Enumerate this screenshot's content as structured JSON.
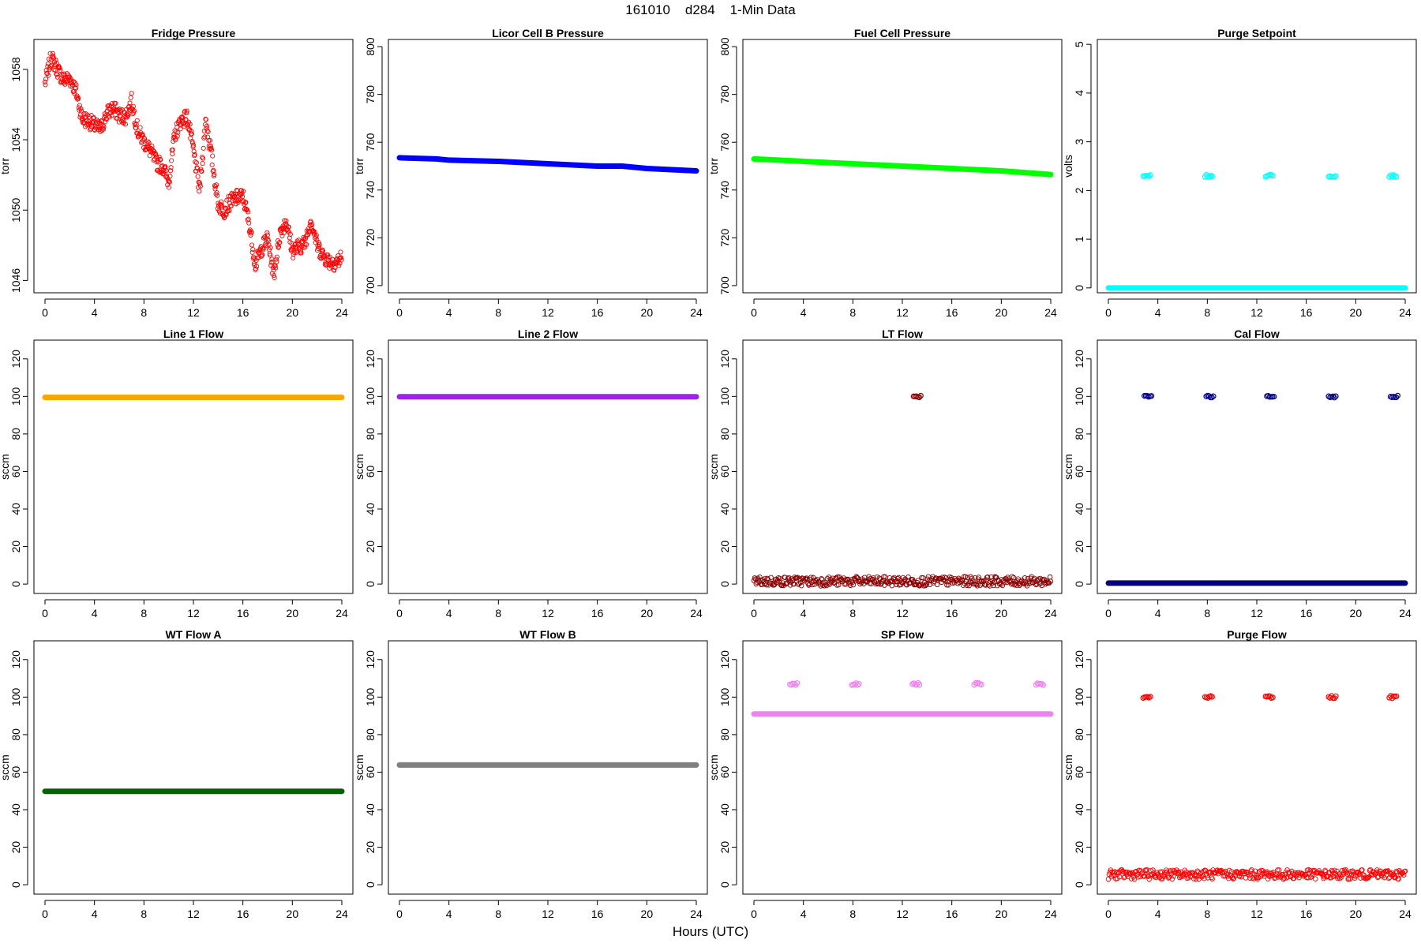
{
  "figure": {
    "title": "161010    d284    1-Min Data",
    "xlabel": "Hours (UTC)"
  },
  "chart_data": [
    {
      "type": "scatter",
      "title": "Fridge Pressure",
      "ylabel": "torr",
      "xlim": [
        0,
        24
      ],
      "ylim": [
        1045.3,
        1059.7
      ],
      "xticks": [
        0,
        4,
        8,
        12,
        16,
        20,
        24
      ],
      "yticks": [
        1046,
        1050,
        1054,
        1058
      ],
      "grid": false,
      "legend": "none",
      "series": [
        {
          "color": "#ff0000",
          "marker": "open-circle",
          "x": [
            0,
            0.5,
            1,
            1.5,
            2,
            2.5,
            3,
            3.5,
            4,
            4.5,
            5,
            5.5,
            6,
            6.5,
            7,
            7.5,
            8,
            8.5,
            9,
            9.5,
            10,
            10.5,
            11,
            11.5,
            12,
            12.5,
            13,
            13.5,
            14,
            14.5,
            15,
            15.5,
            16,
            16.5,
            17,
            17.5,
            18,
            18.5,
            19,
            19.5,
            20,
            20.5,
            21,
            21.5,
            22,
            22.5,
            23,
            23.5,
            24
          ],
          "y": [
            1057.2,
            1058.7,
            1058.0,
            1057.4,
            1057.5,
            1056.8,
            1055.2,
            1055.1,
            1054.8,
            1054.6,
            1055.5,
            1055.8,
            1055.4,
            1055.3,
            1056.2,
            1054.5,
            1053.9,
            1053.4,
            1052.7,
            1052.5,
            1051.6,
            1054.3,
            1055.1,
            1055.3,
            1053.4,
            1051.1,
            1055.2,
            1052.9,
            1050.3,
            1050.0,
            1050.5,
            1050.7,
            1050.8,
            1049.3,
            1046.9,
            1047.8,
            1048.4,
            1046.3,
            1048.7,
            1049.4,
            1047.7,
            1047.9,
            1048.1,
            1049.5,
            1048.0,
            1047.4,
            1047.1,
            1047.0,
            1047.3
          ]
        }
      ]
    },
    {
      "type": "scatter",
      "title": "Licor Cell B Pressure",
      "ylabel": "torr",
      "xlim": [
        0,
        24
      ],
      "ylim": [
        697,
        803
      ],
      "xticks": [
        0,
        4,
        8,
        12,
        16,
        20,
        24
      ],
      "yticks": [
        700,
        720,
        740,
        760,
        780,
        800
      ],
      "grid": false,
      "legend": "none",
      "series": [
        {
          "color": "#0000ff",
          "marker": "filled-line",
          "x": [
            0,
            3,
            4,
            8,
            12,
            16,
            18,
            20,
            24
          ],
          "y": [
            753.5,
            753.0,
            752.5,
            752.0,
            751.0,
            750.0,
            750.0,
            749.0,
            748.0
          ]
        }
      ]
    },
    {
      "type": "scatter",
      "title": "Fuel Cell Pressure",
      "ylabel": "torr",
      "xlim": [
        0,
        24
      ],
      "ylim": [
        697,
        803
      ],
      "xticks": [
        0,
        4,
        8,
        12,
        16,
        20,
        24
      ],
      "yticks": [
        700,
        720,
        740,
        760,
        780,
        800
      ],
      "grid": false,
      "legend": "none",
      "series": [
        {
          "color": "#00ff00",
          "marker": "filled-line",
          "x": [
            0,
            4,
            8,
            12,
            16,
            20,
            24
          ],
          "y": [
            753.0,
            752.0,
            751.0,
            750.0,
            749.0,
            748.0,
            746.5
          ]
        }
      ]
    },
    {
      "type": "scatter",
      "title": "Purge Setpoint",
      "ylabel": "volts",
      "xlim": [
        0,
        24
      ],
      "ylim": [
        -0.1,
        5.1
      ],
      "xticks": [
        0,
        4,
        8,
        12,
        16,
        20,
        24
      ],
      "yticks": [
        0,
        1,
        2,
        3,
        4,
        5
      ],
      "grid": false,
      "legend": "none",
      "series": [
        {
          "color": "#00ffff",
          "marker": "filled-line",
          "x": [
            0,
            24
          ],
          "y": [
            0,
            0
          ]
        },
        {
          "color": "#00ffff",
          "marker": "clusters",
          "x": [
            3.1,
            8.1,
            13.0,
            18.1,
            23.0
          ],
          "y": [
            2.3,
            2.3,
            2.3,
            2.3,
            2.3
          ]
        }
      ]
    },
    {
      "type": "scatter",
      "title": "Line 1 Flow",
      "ylabel": "sccm",
      "xlim": [
        0,
        24
      ],
      "ylim": [
        -5,
        130
      ],
      "xticks": [
        0,
        4,
        8,
        12,
        16,
        20,
        24
      ],
      "yticks": [
        0,
        20,
        40,
        60,
        80,
        100,
        120
      ],
      "grid": false,
      "legend": "none",
      "series": [
        {
          "color": "#ffa500",
          "marker": "filled-line",
          "x": [
            0,
            24
          ],
          "y": [
            99.5,
            99.5
          ]
        }
      ]
    },
    {
      "type": "scatter",
      "title": "Line 2 Flow",
      "ylabel": "sccm",
      "xlim": [
        0,
        24
      ],
      "ylim": [
        -5,
        130
      ],
      "xticks": [
        0,
        4,
        8,
        12,
        16,
        20,
        24
      ],
      "yticks": [
        0,
        20,
        40,
        60,
        80,
        100,
        120
      ],
      "grid": false,
      "legend": "none",
      "series": [
        {
          "color": "#a020f0",
          "marker": "filled-line",
          "x": [
            0,
            24
          ],
          "y": [
            99.8,
            99.8
          ]
        }
      ]
    },
    {
      "type": "scatter",
      "title": "LT Flow",
      "ylabel": "sccm",
      "xlim": [
        0,
        24
      ],
      "ylim": [
        -5,
        130
      ],
      "xticks": [
        0,
        4,
        8,
        12,
        16,
        20,
        24
      ],
      "yticks": [
        0,
        20,
        40,
        60,
        80,
        100,
        120
      ],
      "grid": false,
      "legend": "none",
      "series": [
        {
          "color": "#8b0000",
          "marker": "open-band",
          "x": [
            0,
            24
          ],
          "y": [
            1.5,
            1.5
          ]
        },
        {
          "color": "#8b0000",
          "marker": "clusters",
          "x": [
            13.2
          ],
          "y": [
            100
          ]
        }
      ]
    },
    {
      "type": "scatter",
      "title": "Cal Flow",
      "ylabel": "sccm",
      "xlim": [
        0,
        24
      ],
      "ylim": [
        -5,
        130
      ],
      "xticks": [
        0,
        4,
        8,
        12,
        16,
        20,
        24
      ],
      "yticks": [
        0,
        20,
        40,
        60,
        80,
        100,
        120
      ],
      "grid": false,
      "legend": "none",
      "series": [
        {
          "color": "#000080",
          "marker": "filled-line",
          "x": [
            0,
            24
          ],
          "y": [
            0.5,
            0.5
          ]
        },
        {
          "color": "#000080",
          "marker": "clusters",
          "x": [
            3.2,
            8.2,
            13.1,
            18.1,
            23.1
          ],
          "y": [
            99.8,
            99.8,
            99.8,
            99.8,
            99.8
          ]
        }
      ]
    },
    {
      "type": "scatter",
      "title": "WT Flow A",
      "ylabel": "sccm",
      "xlim": [
        0,
        24
      ],
      "ylim": [
        -5,
        130
      ],
      "xticks": [
        0,
        4,
        8,
        12,
        16,
        20,
        24
      ],
      "yticks": [
        0,
        20,
        40,
        60,
        80,
        100,
        120
      ],
      "grid": false,
      "legend": "none",
      "series": [
        {
          "color": "#006400",
          "marker": "filled-line",
          "x": [
            0,
            24
          ],
          "y": [
            49.8,
            49.8
          ]
        }
      ]
    },
    {
      "type": "scatter",
      "title": "WT Flow B",
      "ylabel": "sccm",
      "xlim": [
        0,
        24
      ],
      "ylim": [
        -5,
        130
      ],
      "xticks": [
        0,
        4,
        8,
        12,
        16,
        20,
        24
      ],
      "yticks": [
        0,
        20,
        40,
        60,
        80,
        100,
        120
      ],
      "grid": false,
      "legend": "none",
      "series": [
        {
          "color": "#808080",
          "marker": "filled-line",
          "x": [
            0,
            24
          ],
          "y": [
            63.8,
            63.8
          ]
        }
      ]
    },
    {
      "type": "scatter",
      "title": "SP Flow",
      "ylabel": "sccm",
      "xlim": [
        0,
        24
      ],
      "ylim": [
        -5,
        130
      ],
      "xticks": [
        0,
        4,
        8,
        12,
        16,
        20,
        24
      ],
      "yticks": [
        0,
        20,
        40,
        60,
        80,
        100,
        120
      ],
      "grid": false,
      "legend": "none",
      "series": [
        {
          "color": "#ee82ee",
          "marker": "filled-line",
          "x": [
            0,
            24
          ],
          "y": [
            91,
            91
          ]
        },
        {
          "color": "#ee82ee",
          "marker": "clusters",
          "x": [
            3.2,
            8.2,
            13.1,
            18.1,
            23.1
          ],
          "y": [
            107,
            107,
            107,
            107,
            107
          ]
        }
      ]
    },
    {
      "type": "scatter",
      "title": "Purge Flow",
      "ylabel": "sccm",
      "xlim": [
        0,
        24
      ],
      "ylim": [
        -5,
        130
      ],
      "xticks": [
        0,
        4,
        8,
        12,
        16,
        20,
        24
      ],
      "yticks": [
        0,
        20,
        40,
        60,
        80,
        100,
        120
      ],
      "grid": false,
      "legend": "none",
      "series": [
        {
          "color": "#ff0000",
          "marker": "open-band",
          "x": [
            0,
            24
          ],
          "y": [
            5.5,
            5.5
          ]
        },
        {
          "color": "#ff0000",
          "marker": "clusters",
          "x": [
            3.1,
            8.1,
            13.0,
            18.1,
            23.0
          ],
          "y": [
            100,
            100,
            100,
            100,
            100
          ]
        }
      ]
    }
  ]
}
